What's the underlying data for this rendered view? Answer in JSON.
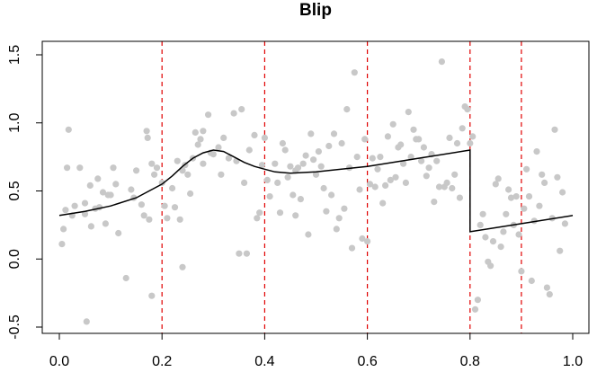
{
  "chart_data": {
    "type": "scatter",
    "title": "Blip",
    "xlabel": "",
    "ylabel": "",
    "xlim": [
      0.0,
      1.0
    ],
    "ylim": [
      -0.5,
      1.5
    ],
    "x_ticks": [
      "0.0",
      "0.2",
      "0.4",
      "0.6",
      "0.8",
      "1.0"
    ],
    "y_ticks": [
      "-0.5",
      "0.0",
      "0.5",
      "1.0",
      "1.5"
    ],
    "grid": false,
    "colors": {
      "points": "#c8c8c8",
      "curve": "#000000",
      "vlines": "#e00000"
    },
    "vertical_dashed_lines_x": [
      0.2,
      0.4,
      0.6,
      0.8,
      0.9
    ],
    "points": [
      [
        0.005,
        0.11
      ],
      [
        0.008,
        0.22
      ],
      [
        0.012,
        0.36
      ],
      [
        0.015,
        0.67
      ],
      [
        0.018,
        0.95
      ],
      [
        0.025,
        0.32
      ],
      [
        0.03,
        0.39
      ],
      [
        0.04,
        0.67
      ],
      [
        0.05,
        0.41
      ],
      [
        0.05,
        0.33
      ],
      [
        0.053,
        -0.46
      ],
      [
        0.06,
        0.54
      ],
      [
        0.062,
        0.24
      ],
      [
        0.07,
        0.37
      ],
      [
        0.075,
        0.59
      ],
      [
        0.078,
        0.38
      ],
      [
        0.085,
        0.49
      ],
      [
        0.09,
        0.26
      ],
      [
        0.095,
        0.47
      ],
      [
        0.1,
        0.47
      ],
      [
        0.105,
        0.67
      ],
      [
        0.11,
        0.55
      ],
      [
        0.115,
        0.19
      ],
      [
        0.13,
        -0.14
      ],
      [
        0.14,
        0.51
      ],
      [
        0.145,
        0.45
      ],
      [
        0.15,
        0.65
      ],
      [
        0.16,
        0.4
      ],
      [
        0.165,
        0.32
      ],
      [
        0.17,
        0.94
      ],
      [
        0.172,
        0.89
      ],
      [
        0.175,
        0.29
      ],
      [
        0.18,
        0.7
      ],
      [
        0.18,
        -0.27
      ],
      [
        0.185,
        0.62
      ],
      [
        0.19,
        0.67
      ],
      [
        0.2,
        0.56
      ],
      [
        0.205,
        0.39
      ],
      [
        0.21,
        0.3
      ],
      [
        0.22,
        0.52
      ],
      [
        0.225,
        0.38
      ],
      [
        0.23,
        0.72
      ],
      [
        0.235,
        0.29
      ],
      [
        0.24,
        -0.06
      ],
      [
        0.24,
        0.65
      ],
      [
        0.245,
        0.69
      ],
      [
        0.25,
        0.62
      ],
      [
        0.255,
        0.48
      ],
      [
        0.26,
        0.74
      ],
      [
        0.265,
        0.93
      ],
      [
        0.27,
        0.84
      ],
      [
        0.275,
        0.88
      ],
      [
        0.28,
        0.7
      ],
      [
        0.28,
        0.94
      ],
      [
        0.29,
        1.06
      ],
      [
        0.295,
        0.78
      ],
      [
        0.3,
        0.77
      ],
      [
        0.31,
        0.82
      ],
      [
        0.315,
        0.62
      ],
      [
        0.32,
        0.89
      ],
      [
        0.33,
        0.74
      ],
      [
        0.34,
        1.07
      ],
      [
        0.345,
        0.72
      ],
      [
        0.35,
        0.04
      ],
      [
        0.355,
        1.1
      ],
      [
        0.36,
        0.56
      ],
      [
        0.365,
        0.04
      ],
      [
        0.37,
        0.8
      ],
      [
        0.38,
        0.91
      ],
      [
        0.385,
        0.3
      ],
      [
        0.39,
        0.34
      ],
      [
        0.395,
        0.69
      ],
      [
        0.4,
        0.89
      ],
      [
        0.405,
        0.58
      ],
      [
        0.41,
        0.46
      ],
      [
        0.42,
        0.7
      ],
      [
        0.425,
        0.56
      ],
      [
        0.43,
        0.34
      ],
      [
        0.435,
        0.85
      ],
      [
        0.44,
        0.8
      ],
      [
        0.445,
        0.6
      ],
      [
        0.45,
        0.68
      ],
      [
        0.455,
        0.47
      ],
      [
        0.46,
        0.32
      ],
      [
        0.46,
        0.65
      ],
      [
        0.465,
        0.67
      ],
      [
        0.47,
        0.44
      ],
      [
        0.475,
        0.7
      ],
      [
        0.48,
        0.76
      ],
      [
        0.485,
        0.18
      ],
      [
        0.49,
        0.92
      ],
      [
        0.495,
        0.73
      ],
      [
        0.5,
        0.62
      ],
      [
        0.505,
        0.79
      ],
      [
        0.51,
        0.68
      ],
      [
        0.515,
        0.52
      ],
      [
        0.52,
        0.35
      ],
      [
        0.525,
        0.83
      ],
      [
        0.53,
        0.47
      ],
      [
        0.535,
        0.92
      ],
      [
        0.54,
        0.22
      ],
      [
        0.545,
        0.3
      ],
      [
        0.55,
        0.85
      ],
      [
        0.555,
        0.37
      ],
      [
        0.56,
        1.1
      ],
      [
        0.565,
        0.67
      ],
      [
        0.57,
        0.08
      ],
      [
        0.575,
        1.37
      ],
      [
        0.58,
        0.75
      ],
      [
        0.585,
        0.51
      ],
      [
        0.59,
        0.15
      ],
      [
        0.595,
        0.88
      ],
      [
        0.6,
        0.13
      ],
      [
        0.605,
        0.55
      ],
      [
        0.61,
        0.74
      ],
      [
        0.615,
        0.53
      ],
      [
        0.62,
        0.66
      ],
      [
        0.625,
        0.75
      ],
      [
        0.63,
        0.41
      ],
      [
        0.635,
        0.54
      ],
      [
        0.64,
        0.9
      ],
      [
        0.645,
        0.58
      ],
      [
        0.65,
        0.99
      ],
      [
        0.655,
        0.6
      ],
      [
        0.66,
        0.82
      ],
      [
        0.665,
        0.84
      ],
      [
        0.67,
        0.7
      ],
      [
        0.675,
        0.56
      ],
      [
        0.68,
        1.08
      ],
      [
        0.685,
        0.75
      ],
      [
        0.69,
        0.95
      ],
      [
        0.695,
        0.88
      ],
      [
        0.7,
        0.88
      ],
      [
        0.705,
        0.72
      ],
      [
        0.71,
        0.82
      ],
      [
        0.715,
        0.61
      ],
      [
        0.72,
        0.67
      ],
      [
        0.725,
        0.77
      ],
      [
        0.73,
        0.42
      ],
      [
        0.735,
        0.72
      ],
      [
        0.74,
        0.53
      ],
      [
        0.745,
        1.45
      ],
      [
        0.75,
        0.53
      ],
      [
        0.755,
        0.56
      ],
      [
        0.76,
        0.89
      ],
      [
        0.765,
        0.52
      ],
      [
        0.77,
        0.62
      ],
      [
        0.775,
        0.85
      ],
      [
        0.78,
        0.45
      ],
      [
        0.785,
        0.96
      ],
      [
        0.79,
        1.12
      ],
      [
        0.795,
        1.1
      ],
      [
        0.8,
        0.85
      ],
      [
        0.805,
        0.9
      ],
      [
        0.81,
        -0.37
      ],
      [
        0.815,
        -0.3
      ],
      [
        0.82,
        0.25
      ],
      [
        0.825,
        0.33
      ],
      [
        0.83,
        0.16
      ],
      [
        0.835,
        -0.02
      ],
      [
        0.84,
        -0.05
      ],
      [
        0.845,
        0.13
      ],
      [
        0.85,
        0.55
      ],
      [
        0.855,
        0.59
      ],
      [
        0.86,
        0.09
      ],
      [
        0.865,
        0.2
      ],
      [
        0.87,
        0.33
      ],
      [
        0.875,
        0.51
      ],
      [
        0.88,
        0.45
      ],
      [
        0.885,
        0.25
      ],
      [
        0.89,
        0.46
      ],
      [
        0.895,
        0.18
      ],
      [
        0.9,
        -0.09
      ],
      [
        0.905,
        0.37
      ],
      [
        0.91,
        0.66
      ],
      [
        0.915,
        0.46
      ],
      [
        0.92,
        -0.16
      ],
      [
        0.925,
        0.28
      ],
      [
        0.93,
        0.79
      ],
      [
        0.935,
        0.39
      ],
      [
        0.94,
        0.62
      ],
      [
        0.945,
        0.56
      ],
      [
        0.95,
        -0.21
      ],
      [
        0.955,
        -0.26
      ],
      [
        0.96,
        0.3
      ],
      [
        0.965,
        0.95
      ],
      [
        0.97,
        0.6
      ],
      [
        0.98,
        0.49
      ],
      [
        0.975,
        0.06
      ],
      [
        0.985,
        0.26
      ]
    ],
    "curve": [
      [
        0.0,
        0.32
      ],
      [
        0.05,
        0.35
      ],
      [
        0.1,
        0.39
      ],
      [
        0.15,
        0.45
      ],
      [
        0.2,
        0.55
      ],
      [
        0.22,
        0.61
      ],
      [
        0.24,
        0.68
      ],
      [
        0.26,
        0.74
      ],
      [
        0.28,
        0.78
      ],
      [
        0.3,
        0.8
      ],
      [
        0.32,
        0.79
      ],
      [
        0.34,
        0.75
      ],
      [
        0.36,
        0.71
      ],
      [
        0.38,
        0.68
      ],
      [
        0.4,
        0.66
      ],
      [
        0.42,
        0.64
      ],
      [
        0.45,
        0.63
      ],
      [
        0.5,
        0.64
      ],
      [
        0.6,
        0.68
      ],
      [
        0.7,
        0.74
      ],
      [
        0.8,
        0.8
      ],
      [
        0.8,
        0.2
      ],
      [
        0.9,
        0.26
      ],
      [
        1.0,
        0.32
      ]
    ]
  }
}
